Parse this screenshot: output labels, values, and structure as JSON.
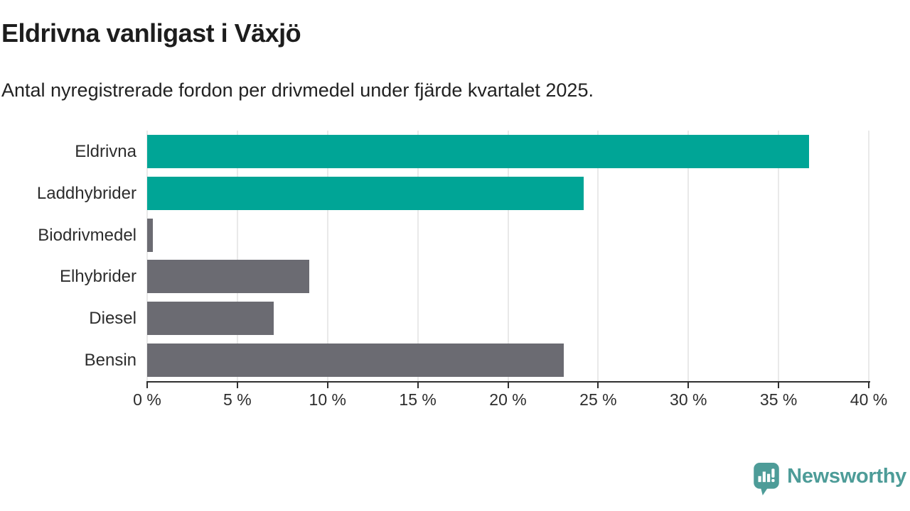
{
  "title": "Eldrivna vanligast i Växjö",
  "subtitle": "Antal nyregistrerade fordon per drivmedel under fjärde kvartalet 2025.",
  "chart_data": {
    "type": "bar",
    "orientation": "horizontal",
    "title": "Eldrivna vanligast i Växjö",
    "subtitle": "Antal nyregistrerade fordon per drivmedel under fjärde kvartalet 2025.",
    "categories": [
      "Eldrivna",
      "Laddhybrider",
      "Biodrivmedel",
      "Elhybrider",
      "Diesel",
      "Bensin"
    ],
    "values": [
      36.7,
      24.2,
      0.3,
      9.0,
      7.0,
      23.1
    ],
    "unit": "%",
    "xlim": [
      0,
      40
    ],
    "x_tick_values": [
      0,
      5,
      10,
      15,
      20,
      25,
      30,
      35,
      40
    ],
    "x_tick_labels": [
      "0 %",
      "5 %",
      "10 %",
      "15 %",
      "20 %",
      "25 %",
      "30 %",
      "35 %",
      "40 %"
    ],
    "bar_colors": [
      "#00A596",
      "#00A596",
      "#6B6B72",
      "#6B6B72",
      "#6B6B72",
      "#6B6B72"
    ],
    "highlight_color": "#00A596",
    "default_color": "#6B6B72",
    "grid": true,
    "legend": false,
    "xlabel": "",
    "ylabel": ""
  },
  "branding": {
    "logo_text": "Newsworthy",
    "logo_color": "#4D9C98",
    "logo_icon": "newsworthy-bubble-chart-icon"
  }
}
